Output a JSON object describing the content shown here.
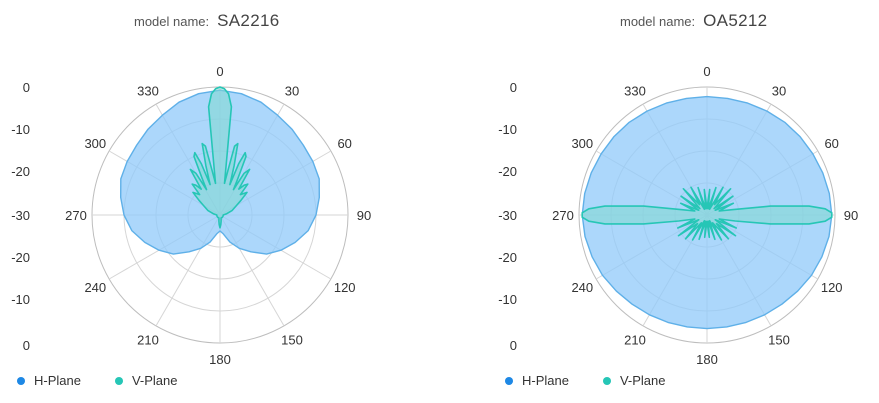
{
  "chart_data": [
    {
      "type": "polar",
      "model_label": "model name:",
      "model_value": "SA2216",
      "angle_labels": [
        "0",
        "30",
        "60",
        "90",
        "120",
        "150",
        "180",
        "210",
        "240",
        "270",
        "300",
        "330"
      ],
      "radial_labels": [
        "0",
        "-10",
        "-20",
        "-30",
        "-20",
        "-10",
        "0"
      ],
      "radial_range": [
        -40,
        0
      ],
      "series": [
        {
          "name": "H-Plane",
          "color": "#1e88e5",
          "fill": "#90caf9",
          "angles": [
            0,
            10,
            20,
            30,
            40,
            50,
            60,
            70,
            80,
            90,
            100,
            110,
            120,
            130,
            140,
            150,
            160,
            170,
            180,
            190,
            200,
            210,
            220,
            230,
            240,
            250,
            260,
            270,
            280,
            290,
            300,
            310,
            320,
            330,
            340,
            350
          ],
          "values": [
            -1,
            -1.5,
            -2.5,
            -4,
            -5,
            -6,
            -6.5,
            -7,
            -8.5,
            -10,
            -12,
            -15,
            -18,
            -21,
            -25,
            -28,
            -31,
            -34,
            -35,
            -34,
            -31,
            -28,
            -25,
            -21,
            -18,
            -15,
            -12,
            -10,
            -8.5,
            -7,
            -6.5,
            -6,
            -5,
            -4,
            -2.5,
            -1.5
          ]
        },
        {
          "name": "V-Plane",
          "color": "#26c6b6",
          "fill": "#7fd8cf",
          "angles": [
            0,
            2,
            4,
            6,
            8,
            10,
            12,
            14,
            16,
            18,
            20,
            22,
            24,
            26,
            28,
            30,
            33,
            36,
            39,
            42,
            45,
            50,
            55,
            60,
            70,
            80,
            90,
            100,
            120,
            140,
            160,
            170,
            175,
            180,
            185,
            190,
            200,
            220,
            240,
            260,
            270,
            280,
            290,
            300,
            305,
            310,
            315,
            318,
            321,
            324,
            327,
            330,
            332,
            334,
            336,
            338,
            340,
            342,
            344,
            346,
            348,
            350,
            352,
            354,
            356,
            358
          ],
          "values": [
            0,
            -0.5,
            -2,
            -6,
            -30,
            -26,
            -18,
            -17,
            -24,
            -30,
            -23,
            -19,
            -20,
            -27,
            -31,
            -25,
            -23,
            -30,
            -28,
            -27,
            -31,
            -29,
            -32,
            -34,
            -36,
            -38,
            -39,
            -39,
            -39,
            -39,
            -39,
            -38,
            -37,
            -36,
            -37,
            -38,
            -39,
            -39,
            -39,
            -39,
            -39,
            -38,
            -36,
            -34,
            -32,
            -29,
            -31,
            -27,
            -28,
            -30,
            -23,
            -25,
            -31,
            -27,
            -20,
            -19,
            -23,
            -30,
            -24,
            -17,
            -18,
            -26,
            -30,
            -6,
            -2,
            -0.5
          ]
        }
      ]
    },
    {
      "type": "polar",
      "model_label": "model name:",
      "model_value": "OA5212",
      "angle_labels": [
        "0",
        "30",
        "60",
        "90",
        "120",
        "150",
        "180",
        "210",
        "240",
        "270",
        "300",
        "330"
      ],
      "radial_labels": [
        "0",
        "-10",
        "-20",
        "-30",
        "-20",
        "-10",
        "0"
      ],
      "radial_range": [
        -40,
        0
      ],
      "series": [
        {
          "name": "H-Plane",
          "color": "#1e88e5",
          "fill": "#90caf9",
          "angles": [
            0,
            10,
            20,
            30,
            40,
            50,
            60,
            70,
            80,
            90,
            100,
            110,
            120,
            130,
            140,
            150,
            160,
            170,
            180,
            190,
            200,
            210,
            220,
            230,
            240,
            250,
            260,
            270,
            280,
            290,
            300,
            310,
            320,
            330,
            340,
            350
          ],
          "values": [
            -3,
            -3,
            -2.8,
            -2.5,
            -2.2,
            -2,
            -1.8,
            -1.5,
            -1.2,
            -1,
            -1.3,
            -1.8,
            -2.3,
            -3,
            -3.6,
            -4,
            -4.3,
            -4.5,
            -4.5,
            -4.5,
            -4.3,
            -4,
            -3.6,
            -3,
            -2.3,
            -1.8,
            -1.3,
            -1,
            -1.2,
            -1.5,
            -1.8,
            -2,
            -2.2,
            -2.5,
            -2.8,
            -3
          ]
        },
        {
          "name": "V-Plane",
          "color": "#26c6b6",
          "fill": "#7fd8cf",
          "angles": [
            0,
            6,
            12,
            18,
            24,
            30,
            36,
            42,
            48,
            54,
            60,
            66,
            72,
            78,
            82,
            85,
            87,
            89,
            90,
            91,
            93,
            95,
            98,
            102,
            108,
            114,
            120,
            126,
            132,
            138,
            144,
            150,
            156,
            162,
            168,
            174,
            180,
            186,
            192,
            198,
            204,
            210,
            216,
            222,
            228,
            234,
            240,
            246,
            252,
            258,
            262,
            265,
            267,
            269,
            270,
            271,
            273,
            275,
            278,
            282,
            288,
            294,
            300,
            306,
            312,
            318,
            324,
            330,
            336,
            342,
            348,
            354
          ],
          "values": [
            -38,
            -32,
            -38,
            -31,
            -38,
            -30,
            -36,
            -29,
            -37,
            -30,
            -37,
            -31,
            -36,
            -32,
            -20,
            -8,
            -3,
            -1,
            -1,
            -1,
            -3,
            -8,
            -20,
            -31,
            -36,
            -30,
            -37,
            -29,
            -36,
            -30,
            -37,
            -31,
            -38,
            -32,
            -38,
            -33,
            -38,
            -33,
            -38,
            -32,
            -38,
            -31,
            -37,
            -30,
            -36,
            -29,
            -37,
            -30,
            -36,
            -31,
            -20,
            -8,
            -3,
            -1,
            -1,
            -1,
            -3,
            -8,
            -20,
            -32,
            -36,
            -31,
            -37,
            -30,
            -37,
            -29,
            -36,
            -30,
            -38,
            -31,
            -38,
            -32
          ]
        }
      ]
    }
  ]
}
